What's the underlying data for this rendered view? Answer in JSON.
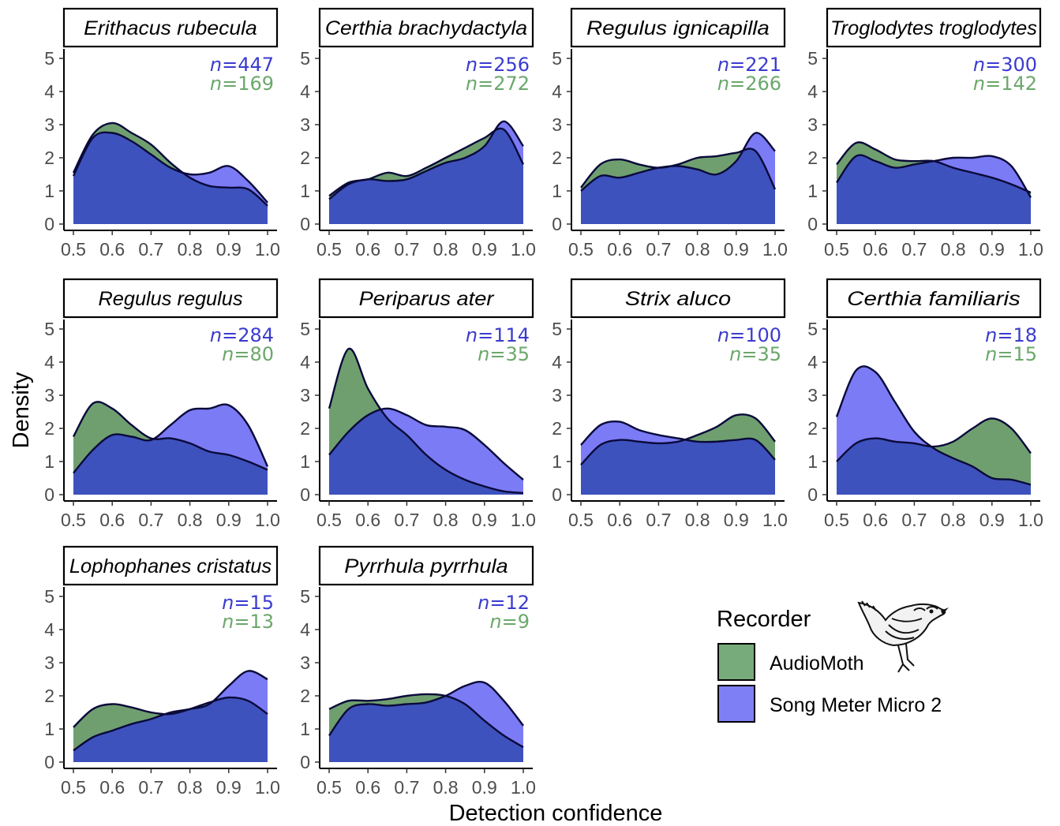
{
  "figure": {
    "xlabel": "Detection confidence",
    "ylabel": "Density",
    "legend": {
      "title": "Recorder",
      "position": "bottom-right",
      "entries": [
        {
          "name": "AudioMoth",
          "color": "#77ab7b"
        },
        {
          "name": "Song Meter Micro 2",
          "color": "#7f7ff5"
        }
      ],
      "icon": "wren-bird-icon"
    },
    "colors": {
      "audiomoth_fill": "#6f9f6f",
      "songmeter_fill": "#7b7bf5",
      "overlap_fill": "#3e52bd",
      "n_songmeter": "#3b3bcf",
      "n_audiomoth": "#6ba86b"
    }
  },
  "chart_data": [
    {
      "type": "area",
      "title": "Erithacus rubecula",
      "x": [
        0.5,
        0.55,
        0.6,
        0.65,
        0.7,
        0.75,
        0.8,
        0.85,
        0.9,
        0.95,
        1.0
      ],
      "xlim": [
        0.5,
        1.0
      ],
      "ylim": [
        0,
        5
      ],
      "x_ticks": [
        "0.5",
        "0.6",
        "0.7",
        "0.8",
        "0.9",
        "1.0"
      ],
      "y_ticks": [
        "0",
        "1",
        "2",
        "3",
        "4",
        "5"
      ],
      "series": [
        {
          "name": "AudioMoth",
          "n": "169",
          "values": [
            1.55,
            2.7,
            3.05,
            2.75,
            2.4,
            1.85,
            1.4,
            1.15,
            1.1,
            1.05,
            0.55
          ]
        },
        {
          "name": "Song Meter Micro 2",
          "n": "447",
          "values": [
            1.45,
            2.6,
            2.75,
            2.5,
            2.1,
            1.7,
            1.5,
            1.55,
            1.75,
            1.3,
            0.65
          ]
        }
      ]
    },
    {
      "type": "area",
      "title": "Certhia brachydactyla",
      "x": [
        0.5,
        0.55,
        0.6,
        0.65,
        0.7,
        0.75,
        0.8,
        0.85,
        0.9,
        0.95,
        1.0
      ],
      "xlim": [
        0.5,
        1.0
      ],
      "ylim": [
        0,
        5
      ],
      "x_ticks": [
        "0.5",
        "0.6",
        "0.7",
        "0.8",
        "0.9",
        "1.0"
      ],
      "y_ticks": [
        "0",
        "1",
        "2",
        "3",
        "4",
        "5"
      ],
      "series": [
        {
          "name": "AudioMoth",
          "n": "272",
          "values": [
            0.85,
            1.25,
            1.35,
            1.55,
            1.45,
            1.7,
            2.0,
            2.3,
            2.6,
            2.85,
            1.8
          ]
        },
        {
          "name": "Song Meter Micro 2",
          "n": "256",
          "values": [
            0.75,
            1.2,
            1.35,
            1.3,
            1.35,
            1.6,
            1.85,
            2.0,
            2.35,
            3.1,
            2.35
          ]
        }
      ]
    },
    {
      "type": "area",
      "title": "Regulus ignicapilla",
      "x": [
        0.5,
        0.55,
        0.6,
        0.65,
        0.7,
        0.75,
        0.8,
        0.85,
        0.9,
        0.95,
        1.0
      ],
      "xlim": [
        0.5,
        1.0
      ],
      "ylim": [
        0,
        5
      ],
      "x_ticks": [
        "0.5",
        "0.6",
        "0.7",
        "0.8",
        "0.9",
        "1.0"
      ],
      "y_ticks": [
        "0",
        "1",
        "2",
        "3",
        "4",
        "5"
      ],
      "series": [
        {
          "name": "AudioMoth",
          "n": "266",
          "values": [
            1.1,
            1.8,
            1.95,
            1.8,
            1.7,
            1.8,
            2.0,
            2.05,
            2.15,
            2.2,
            1.05
          ]
        },
        {
          "name": "Song Meter Micro 2",
          "n": "221",
          "values": [
            1.0,
            1.45,
            1.4,
            1.55,
            1.7,
            1.75,
            1.65,
            1.5,
            1.9,
            2.75,
            2.2
          ]
        }
      ]
    },
    {
      "type": "area",
      "title": "Troglodytes troglodytes",
      "x": [
        0.5,
        0.55,
        0.6,
        0.65,
        0.7,
        0.75,
        0.8,
        0.85,
        0.9,
        0.95,
        1.0
      ],
      "xlim": [
        0.5,
        1.0
      ],
      "ylim": [
        0,
        5
      ],
      "x_ticks": [
        "0.5",
        "0.6",
        "0.7",
        "0.8",
        "0.9",
        "1.0"
      ],
      "y_ticks": [
        "0",
        "1",
        "2",
        "3",
        "4",
        "5"
      ],
      "series": [
        {
          "name": "AudioMoth",
          "n": "142",
          "values": [
            1.8,
            2.45,
            2.25,
            1.95,
            1.9,
            1.9,
            1.7,
            1.55,
            1.4,
            1.2,
            0.95
          ]
        },
        {
          "name": "Song Meter Micro 2",
          "n": "300",
          "values": [
            1.25,
            2.05,
            1.9,
            1.7,
            1.8,
            1.9,
            2.0,
            2.0,
            2.05,
            1.75,
            0.8
          ]
        }
      ]
    },
    {
      "type": "area",
      "title": "Regulus regulus",
      "x": [
        0.5,
        0.55,
        0.6,
        0.65,
        0.7,
        0.75,
        0.8,
        0.85,
        0.9,
        0.95,
        1.0
      ],
      "xlim": [
        0.5,
        1.0
      ],
      "ylim": [
        0,
        5
      ],
      "x_ticks": [
        "0.5",
        "0.6",
        "0.7",
        "0.8",
        "0.9",
        "1.0"
      ],
      "y_ticks": [
        "0",
        "1",
        "2",
        "3",
        "4",
        "5"
      ],
      "series": [
        {
          "name": "AudioMoth",
          "n": "80",
          "values": [
            1.75,
            2.75,
            2.6,
            2.1,
            1.7,
            1.7,
            1.55,
            1.3,
            1.2,
            1.0,
            0.75
          ]
        },
        {
          "name": "Song Meter Micro 2",
          "n": "284",
          "values": [
            0.65,
            1.35,
            1.8,
            1.75,
            1.65,
            2.1,
            2.55,
            2.6,
            2.7,
            2.1,
            0.85
          ]
        }
      ]
    },
    {
      "type": "area",
      "title": "Periparus ater",
      "x": [
        0.5,
        0.55,
        0.6,
        0.65,
        0.7,
        0.75,
        0.8,
        0.85,
        0.9,
        0.95,
        1.0
      ],
      "xlim": [
        0.5,
        1.0
      ],
      "ylim": [
        0,
        5
      ],
      "x_ticks": [
        "0.5",
        "0.6",
        "0.7",
        "0.8",
        "0.9",
        "1.0"
      ],
      "y_ticks": [
        "0",
        "1",
        "2",
        "3",
        "4",
        "5"
      ],
      "series": [
        {
          "name": "AudioMoth",
          "n": "35",
          "values": [
            2.6,
            4.4,
            3.2,
            2.3,
            1.8,
            1.2,
            0.75,
            0.45,
            0.25,
            0.1,
            0.05
          ]
        },
        {
          "name": "Song Meter Micro 2",
          "n": "114",
          "values": [
            1.2,
            1.9,
            2.4,
            2.6,
            2.4,
            2.1,
            2.05,
            1.95,
            1.5,
            0.95,
            0.45
          ]
        }
      ]
    },
    {
      "type": "area",
      "title": "Strix aluco",
      "x": [
        0.5,
        0.55,
        0.6,
        0.65,
        0.7,
        0.75,
        0.8,
        0.85,
        0.9,
        0.95,
        1.0
      ],
      "xlim": [
        0.5,
        1.0
      ],
      "ylim": [
        0,
        5
      ],
      "x_ticks": [
        "0.5",
        "0.6",
        "0.7",
        "0.8",
        "0.9",
        "1.0"
      ],
      "y_ticks": [
        "0",
        "1",
        "2",
        "3",
        "4",
        "5"
      ],
      "series": [
        {
          "name": "AudioMoth",
          "n": "35",
          "values": [
            0.9,
            1.5,
            1.65,
            1.6,
            1.55,
            1.6,
            1.8,
            2.05,
            2.4,
            2.3,
            1.6
          ]
        },
        {
          "name": "Song Meter Micro 2",
          "n": "100",
          "values": [
            1.5,
            2.1,
            2.2,
            1.95,
            1.8,
            1.7,
            1.6,
            1.6,
            1.65,
            1.65,
            1.05
          ]
        }
      ]
    },
    {
      "type": "area",
      "title": "Certhia familiaris",
      "x": [
        0.5,
        0.55,
        0.6,
        0.65,
        0.7,
        0.75,
        0.8,
        0.85,
        0.9,
        0.95,
        1.0
      ],
      "xlim": [
        0.5,
        1.0
      ],
      "ylim": [
        0,
        5
      ],
      "x_ticks": [
        "0.5",
        "0.6",
        "0.7",
        "0.8",
        "0.9",
        "1.0"
      ],
      "y_ticks": [
        "0",
        "1",
        "2",
        "3",
        "4",
        "5"
      ],
      "series": [
        {
          "name": "AudioMoth",
          "n": "15",
          "values": [
            1.0,
            1.55,
            1.7,
            1.6,
            1.55,
            1.45,
            1.6,
            2.0,
            2.3,
            2.0,
            1.25
          ]
        },
        {
          "name": "Song Meter Micro 2",
          "n": "18",
          "values": [
            2.35,
            3.75,
            3.7,
            2.8,
            1.9,
            1.4,
            1.1,
            0.85,
            0.5,
            0.45,
            0.3
          ]
        }
      ]
    },
    {
      "type": "area",
      "title": "Lophophanes cristatus",
      "x": [
        0.5,
        0.55,
        0.6,
        0.65,
        0.7,
        0.75,
        0.8,
        0.85,
        0.9,
        0.95,
        1.0
      ],
      "xlim": [
        0.5,
        1.0
      ],
      "ylim": [
        0,
        5
      ],
      "x_ticks": [
        "0.5",
        "0.6",
        "0.7",
        "0.8",
        "0.9",
        "1.0"
      ],
      "y_ticks": [
        "0",
        "1",
        "2",
        "3",
        "4",
        "5"
      ],
      "series": [
        {
          "name": "AudioMoth",
          "n": "13",
          "values": [
            1.05,
            1.6,
            1.75,
            1.65,
            1.5,
            1.45,
            1.6,
            1.8,
            1.95,
            1.85,
            1.45
          ]
        },
        {
          "name": "Song Meter Micro 2",
          "n": "15",
          "values": [
            0.35,
            0.75,
            0.95,
            1.15,
            1.3,
            1.5,
            1.6,
            1.75,
            2.3,
            2.75,
            2.5
          ]
        }
      ]
    },
    {
      "type": "area",
      "title": "Pyrrhula pyrrhula",
      "x": [
        0.5,
        0.55,
        0.6,
        0.65,
        0.7,
        0.75,
        0.8,
        0.85,
        0.9,
        0.95,
        1.0
      ],
      "xlim": [
        0.5,
        1.0
      ],
      "ylim": [
        0,
        5
      ],
      "x_ticks": [
        "0.5",
        "0.6",
        "0.7",
        "0.8",
        "0.9",
        "1.0"
      ],
      "y_ticks": [
        "0",
        "1",
        "2",
        "3",
        "4",
        "5"
      ],
      "series": [
        {
          "name": "AudioMoth",
          "n": "9",
          "values": [
            1.6,
            1.85,
            1.85,
            1.9,
            2.0,
            2.05,
            2.0,
            1.75,
            1.25,
            0.8,
            0.45
          ]
        },
        {
          "name": "Song Meter Micro 2",
          "n": "12",
          "values": [
            0.8,
            1.6,
            1.75,
            1.7,
            1.75,
            1.8,
            2.0,
            2.3,
            2.4,
            1.85,
            1.1
          ]
        }
      ]
    }
  ]
}
